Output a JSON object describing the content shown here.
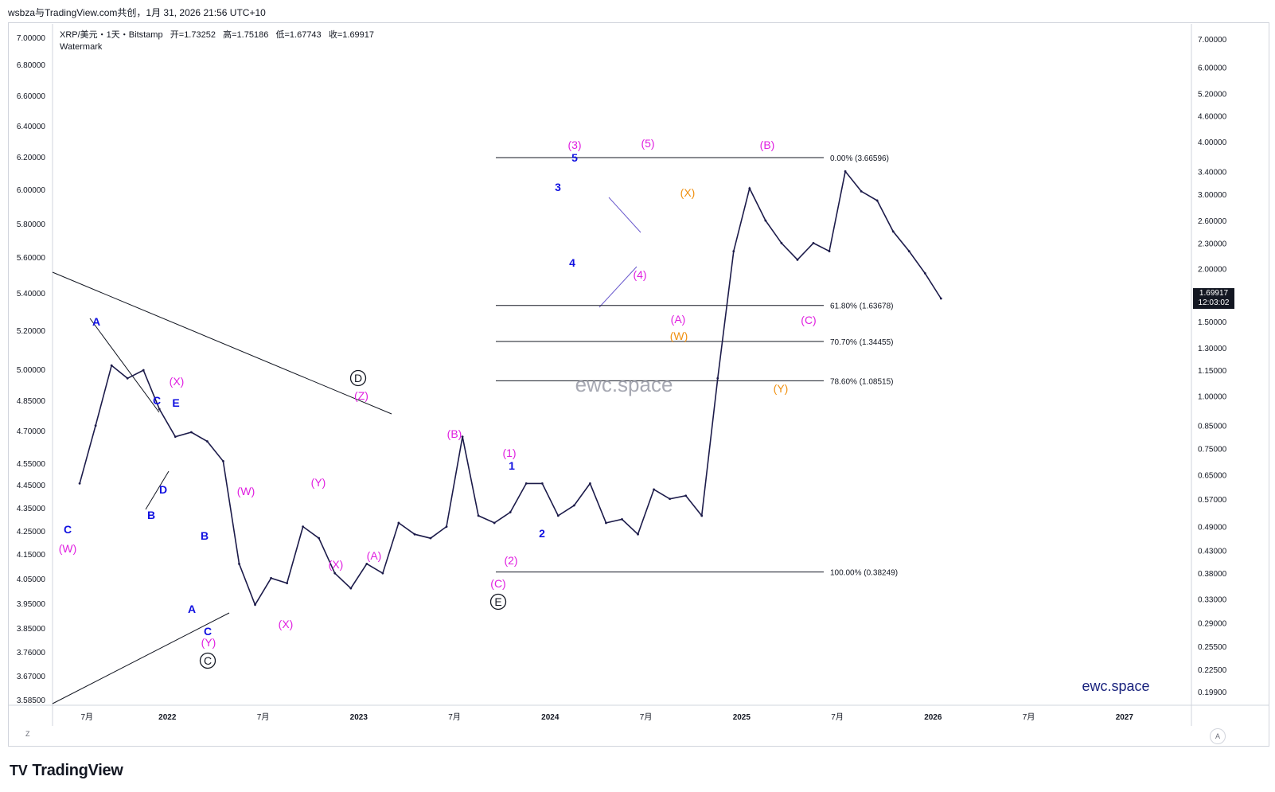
{
  "header": {
    "share_line": "wsbza与TradingView.com共创，1月 31, 2026 21:56 UTC+10"
  },
  "legend": {
    "symbol_line": "XRP/美元・1天・Bitstamp",
    "open_label": "开",
    "open": "=1.73252",
    "high_label": "高",
    "high": "=1.75186",
    "low_label": "低",
    "low": "=1.67743",
    "close_label": "收",
    "close": "=1.69917",
    "watermark_label": "Watermark"
  },
  "price_badge": {
    "price": "1.69917",
    "countdown": "12:03:02"
  },
  "branding": {
    "tradingview": "TradingView",
    "logo_glyph": "TV",
    "watermark_center": "ewc.space",
    "watermark_corner": "ewc.space"
  },
  "buttons": {
    "z": "Z",
    "a": "A"
  },
  "colors": {
    "candle": "#1c1b4a",
    "magenta": "#e020e0",
    "blue": "#1010e0",
    "orange": "#f09010",
    "line": "#131722",
    "badge": "#131722"
  },
  "chart_data": {
    "type": "line",
    "title": "",
    "left_axis": {
      "ticks": [
        "7.00000",
        "6.80000",
        "6.60000",
        "6.40000",
        "6.20000",
        "6.00000",
        "5.80000",
        "5.60000",
        "5.40000",
        "5.20000",
        "5.00000",
        "4.85000",
        "4.70000",
        "4.55000",
        "4.45000",
        "4.35000",
        "4.25000",
        "4.15000",
        "4.05000",
        "3.95000",
        "3.85000",
        "3.76000",
        "3.67000",
        "3.58500"
      ]
    },
    "right_axis": {
      "scale": "log",
      "ticks": [
        "7.00000",
        "6.00000",
        "5.20000",
        "4.60000",
        "4.00000",
        "3.40000",
        "3.00000",
        "2.60000",
        "2.30000",
        "2.00000",
        "1.50000",
        "1.30000",
        "1.15000",
        "1.00000",
        "0.85000",
        "0.75000",
        "0.65000",
        "0.57000",
        "0.49000",
        "0.43000",
        "0.38000",
        "0.33000",
        "0.29000",
        "0.25500",
        "0.22500",
        "0.19900"
      ]
    },
    "x_axis": {
      "ticks": [
        "7月",
        "2022",
        "7月",
        "2023",
        "7月",
        "2024",
        "7月",
        "2025",
        "7月",
        "2026",
        "7月",
        "2027"
      ]
    },
    "series": [
      {
        "values": [
          [
            "2021-07",
            0.62
          ],
          [
            "2021-08",
            0.85
          ],
          [
            "2021-09",
            1.18
          ],
          [
            "2021-10",
            1.1
          ],
          [
            "2021-11",
            1.15
          ],
          [
            "2021-12",
            0.93
          ],
          [
            "2022-01",
            0.8
          ],
          [
            "2022-02",
            0.82
          ],
          [
            "2022-03",
            0.78
          ],
          [
            "2022-04",
            0.7
          ],
          [
            "2022-05",
            0.4
          ],
          [
            "2022-06",
            0.32
          ],
          [
            "2022-07",
            0.37
          ],
          [
            "2022-08",
            0.36
          ],
          [
            "2022-09",
            0.49
          ],
          [
            "2022-10",
            0.46
          ],
          [
            "2022-11",
            0.38
          ],
          [
            "2022-12",
            0.35
          ],
          [
            "2023-01",
            0.4
          ],
          [
            "2023-02",
            0.38
          ],
          [
            "2023-03",
            0.5
          ],
          [
            "2023-04",
            0.47
          ],
          [
            "2023-05",
            0.46
          ],
          [
            "2023-06",
            0.49
          ],
          [
            "2023-07",
            0.8
          ],
          [
            "2023-08",
            0.52
          ],
          [
            "2023-09",
            0.5
          ],
          [
            "2023-10",
            0.53
          ],
          [
            "2023-11",
            0.62
          ],
          [
            "2023-12",
            0.62
          ],
          [
            "2024-01",
            0.52
          ],
          [
            "2024-02",
            0.55
          ],
          [
            "2024-03",
            0.62
          ],
          [
            "2024-04",
            0.5
          ],
          [
            "2024-05",
            0.51
          ],
          [
            "2024-06",
            0.47
          ],
          [
            "2024-07",
            0.6
          ],
          [
            "2024-08",
            0.57
          ],
          [
            "2024-09",
            0.58
          ],
          [
            "2024-10",
            0.52
          ],
          [
            "2024-11",
            1.1
          ],
          [
            "2024-12",
            2.2
          ],
          [
            "2025-01",
            3.1
          ],
          [
            "2025-02",
            2.6
          ],
          [
            "2025-03",
            2.3
          ],
          [
            "2025-04",
            2.1
          ],
          [
            "2025-05",
            2.3
          ],
          [
            "2025-06",
            2.2
          ],
          [
            "2025-07",
            3.4
          ],
          [
            "2025-08",
            3.05
          ],
          [
            "2025-09",
            2.9
          ],
          [
            "2025-10",
            2.45
          ],
          [
            "2025-11",
            2.2
          ],
          [
            "2025-12",
            1.95
          ],
          [
            "2026-01",
            1.7
          ]
        ]
      }
    ],
    "fib_levels": [
      {
        "label": "0.00% (3.66596)",
        "value": 3.66596
      },
      {
        "label": "61.80% (1.63678)",
        "value": 1.63678
      },
      {
        "label": "70.70% (1.34455)",
        "value": 1.34455
      },
      {
        "label": "78.60% (1.08515)",
        "value": 1.08515
      },
      {
        "label": "100.00% (0.38249)",
        "value": 0.38249
      }
    ],
    "wave_labels": [
      {
        "text": "(W)",
        "color": "magenta"
      },
      {
        "text": "C",
        "color": "blue"
      },
      {
        "text": "A",
        "color": "blue"
      },
      {
        "text": "C",
        "color": "blue"
      },
      {
        "text": "B",
        "color": "blue"
      },
      {
        "text": "D",
        "color": "blue"
      },
      {
        "text": "E",
        "color": "blue"
      },
      {
        "text": "(X)",
        "color": "magenta"
      },
      {
        "text": "B",
        "color": "blue"
      },
      {
        "text": "A",
        "color": "blue"
      },
      {
        "text": "C",
        "color": "blue"
      },
      {
        "text": "(Y)",
        "color": "magenta"
      },
      {
        "text": "C",
        "color": "black-circled"
      },
      {
        "text": "(W)",
        "color": "magenta"
      },
      {
        "text": "(X)",
        "color": "magenta"
      },
      {
        "text": "(Y)",
        "color": "magenta"
      },
      {
        "text": "(X)",
        "color": "magenta"
      },
      {
        "text": "(Z)",
        "color": "magenta"
      },
      {
        "text": "D",
        "color": "black-circled"
      },
      {
        "text": "(A)",
        "color": "magenta"
      },
      {
        "text": "(B)",
        "color": "magenta"
      },
      {
        "text": "(C)",
        "color": "magenta"
      },
      {
        "text": "E",
        "color": "black-circled"
      },
      {
        "text": "(1)",
        "color": "magenta"
      },
      {
        "text": "1",
        "color": "blue"
      },
      {
        "text": "(2)",
        "color": "magenta"
      },
      {
        "text": "2",
        "color": "blue"
      },
      {
        "text": "3",
        "color": "blue"
      },
      {
        "text": "4",
        "color": "blue"
      },
      {
        "text": "5",
        "color": "blue"
      },
      {
        "text": "(3)",
        "color": "magenta"
      },
      {
        "text": "(4)",
        "color": "magenta"
      },
      {
        "text": "(5)",
        "color": "magenta"
      },
      {
        "text": "(X)",
        "color": "orange"
      },
      {
        "text": "(A)",
        "color": "magenta"
      },
      {
        "text": "(W)",
        "color": "orange"
      },
      {
        "text": "(B)",
        "color": "magenta"
      },
      {
        "text": "(C)",
        "color": "magenta"
      },
      {
        "text": "(Y)",
        "color": "orange"
      }
    ]
  }
}
